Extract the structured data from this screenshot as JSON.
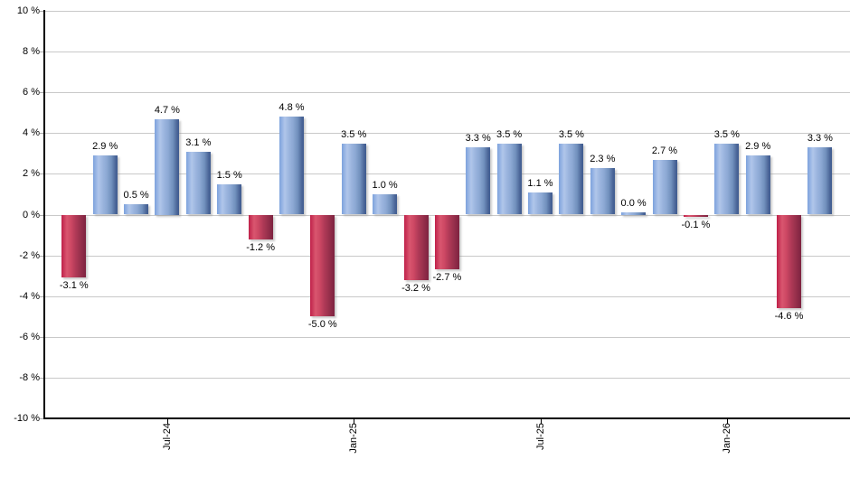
{
  "chart_data": {
    "type": "bar",
    "title": "",
    "xlabel": "",
    "ylabel": "",
    "ylim": [
      -10,
      10
    ],
    "y_step": 2,
    "grid": true,
    "values": [
      -3.1,
      2.9,
      0.5,
      4.7,
      3.1,
      1.5,
      -1.2,
      4.8,
      -5.0,
      3.5,
      1.0,
      -3.2,
      -2.7,
      3.3,
      3.5,
      1.1,
      3.5,
      2.3,
      0.0,
      2.7,
      -0.1,
      3.5,
      2.9,
      -4.6,
      3.3
    ],
    "bar_labels": [
      "-3.1 %",
      "2.9 %",
      "0.5 %",
      "4.7 %",
      "3.1 %",
      "1.5 %",
      "-1.2 %",
      "4.8 %",
      "-5.0 %",
      "3.5 %",
      "1.0 %",
      "-3.2 %",
      "-2.7 %",
      "3.3 %",
      "3.5 %",
      "1.1 %",
      "3.5 %",
      "2.3 %",
      "0.0 %",
      "2.7 %",
      "-0.1 %",
      "3.5 %",
      "2.9 %",
      "-4.6 %",
      "3.3 %"
    ],
    "y_ticks": [
      {
        "label": "10 %",
        "value": 10
      },
      {
        "label": "8 %",
        "value": 8
      },
      {
        "label": "6 %",
        "value": 6
      },
      {
        "label": "4 %",
        "value": 4
      },
      {
        "label": "2 %",
        "value": 2
      },
      {
        "label": "0 %",
        "value": 0
      },
      {
        "label": "-2 %",
        "value": -2
      },
      {
        "label": "-4 %",
        "value": -4
      },
      {
        "label": "-6 %",
        "value": -6
      },
      {
        "label": "-8 %",
        "value": -8
      },
      {
        "label": "-10 %",
        "value": -10
      }
    ],
    "x_ticks": [
      {
        "label": "Jul-24",
        "bar_index": 3
      },
      {
        "label": "Jan-25",
        "bar_index": 9
      },
      {
        "label": "Jul-25",
        "bar_index": 15
      },
      {
        "label": "Jan-26",
        "bar_index": 21
      }
    ],
    "legend": null,
    "colors": {
      "positive_bar_light": "#b0c6ea",
      "positive_bar_left": "#7da2dd",
      "positive_bar_dark": "#3f5c90",
      "negative_bar_light": "#d9566f",
      "negative_bar_left": "#bf2049",
      "negative_bar_dark": "#7e2240",
      "gridline": "#c9c9c9",
      "axis": "#000000",
      "label_text": "#000000",
      "background": "#ffffff"
    }
  }
}
